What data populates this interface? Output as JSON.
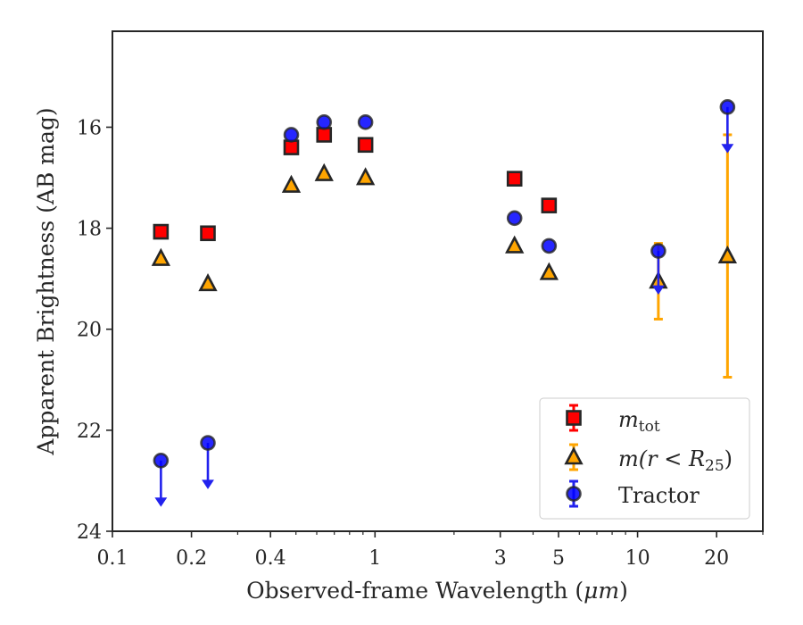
{
  "chart_data": {
    "type": "scatter",
    "title": "",
    "xlabel_main": "Observed-frame Wavelength (",
    "xlabel_unit": "μm",
    "xlabel_end": ")",
    "ylabel": "Apparent Brightness (AB mag)",
    "xscale": "log",
    "xlim": [
      0.1,
      30
    ],
    "ylim": [
      24,
      14.1
    ],
    "y_inverted": true,
    "grid": false,
    "legend_position": "lower-right",
    "x_ticks": [
      {
        "value": 0.1,
        "label": "0.1"
      },
      {
        "value": 0.2,
        "label": "0.2"
      },
      {
        "value": 0.4,
        "label": "0.4"
      },
      {
        "value": 1,
        "label": "1"
      },
      {
        "value": 3,
        "label": "3"
      },
      {
        "value": 5,
        "label": "5"
      },
      {
        "value": 10,
        "label": "10"
      },
      {
        "value": 20,
        "label": "20"
      }
    ],
    "x_minor_ticks": [
      0.3,
      0.5,
      0.6,
      0.7,
      0.8,
      0.9,
      2,
      4,
      6,
      7,
      8,
      9,
      30
    ],
    "y_ticks": [
      {
        "value": 16,
        "label": "16"
      },
      {
        "value": 18,
        "label": "18"
      },
      {
        "value": 20,
        "label": "20"
      },
      {
        "value": 22,
        "label": "22"
      },
      {
        "value": 24,
        "label": "24"
      }
    ],
    "series": [
      {
        "key": "mtot",
        "legend_base": "m",
        "legend_sub": "tot",
        "marker": "square",
        "color": "#ff0000",
        "edge": "#262626",
        "points": [
          {
            "x": 0.153,
            "y": 18.07
          },
          {
            "x": 0.231,
            "y": 18.1
          },
          {
            "x": 0.48,
            "y": 16.4
          },
          {
            "x": 0.64,
            "y": 16.15
          },
          {
            "x": 0.92,
            "y": 16.35
          },
          {
            "x": 3.4,
            "y": 17.02
          },
          {
            "x": 4.6,
            "y": 17.55
          }
        ]
      },
      {
        "key": "mr25",
        "legend_base": "m(r < R",
        "legend_sub": "25",
        "legend_end": ")",
        "marker": "triangle",
        "color": "#ffa500",
        "edge": "#262626",
        "points": [
          {
            "x": 0.153,
            "y": 18.6
          },
          {
            "x": 0.231,
            "y": 19.1
          },
          {
            "x": 0.48,
            "y": 17.15
          },
          {
            "x": 0.64,
            "y": 16.92
          },
          {
            "x": 0.92,
            "y": 17.0
          },
          {
            "x": 3.4,
            "y": 18.35
          },
          {
            "x": 4.6,
            "y": 18.88
          },
          {
            "x": 12.0,
            "y": 19.05,
            "err_low": 18.3,
            "err_high": 19.8
          },
          {
            "x": 22.0,
            "y": 18.55,
            "err_low": 16.15,
            "err_high": 20.95
          }
        ]
      },
      {
        "key": "tractor",
        "legend_label": "Tractor",
        "marker": "circle",
        "color": "#0000ff",
        "edge": "#262626",
        "points": [
          {
            "x": 0.153,
            "y": 22.6,
            "upper_limit_to": 23.5
          },
          {
            "x": 0.231,
            "y": 22.25,
            "upper_limit_to": 23.15
          },
          {
            "x": 0.48,
            "y": 16.15
          },
          {
            "x": 0.64,
            "y": 15.9
          },
          {
            "x": 0.92,
            "y": 15.9
          },
          {
            "x": 3.4,
            "y": 17.8
          },
          {
            "x": 4.6,
            "y": 18.35
          },
          {
            "x": 12.0,
            "y": 18.45,
            "upper_limit_to": 19.3
          },
          {
            "x": 22.0,
            "y": 15.6,
            "upper_limit_to": 16.5
          }
        ]
      }
    ]
  }
}
